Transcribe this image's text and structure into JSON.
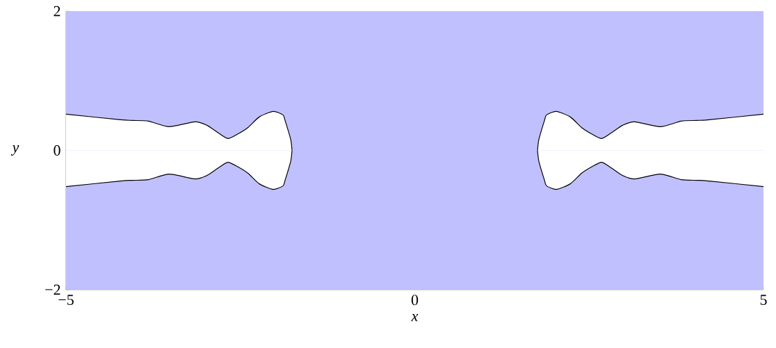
{
  "chart_data": {
    "type": "area",
    "xlabel": "x",
    "ylabel": "y",
    "xlim": [
      -5,
      5
    ],
    "ylim": [
      -2,
      2
    ],
    "xticks": [
      {
        "value": -5,
        "label": "−5"
      },
      0,
      5
    ],
    "yticks": [
      {
        "value": -2,
        "label": "−2"
      },
      0,
      2
    ],
    "grid": false,
    "bands": [
      {
        "axis": "y",
        "from": -2,
        "to": 2,
        "color": "#c0c0ff"
      }
    ],
    "series": [
      {
        "color": "#ffffff",
        "x": [
          -5,
          -4.22,
          -4.05,
          -3.82,
          -3.52,
          -3.15,
          -2.98,
          -2.83,
          -2.68,
          -2.53,
          -2.39,
          -2.23,
          -2.03,
          -1.89,
          -1.86,
          -1.78,
          -1.76
        ],
        "values": [
          0.52,
          0.44,
          0.43,
          0.42,
          0.34,
          0.41,
          0.36,
          0.26,
          0.17,
          0.24,
          0.33,
          0.48,
          0.56,
          0.51,
          0.43,
          0.16,
          0
        ]
      },
      {
        "color": "#ffffff",
        "x": [
          -5,
          -4.22,
          -4.05,
          -3.82,
          -3.52,
          -3.15,
          -2.98,
          -2.83,
          -2.68,
          -2.53,
          -2.39,
          -2.23,
          -2.03,
          -1.89,
          -1.86,
          -1.78,
          -1.76
        ],
        "values": [
          -0.52,
          -0.44,
          -0.43,
          -0.42,
          -0.34,
          -0.41,
          -0.36,
          -0.26,
          -0.17,
          -0.24,
          -0.33,
          -0.48,
          -0.56,
          -0.51,
          -0.43,
          -0.16,
          0
        ]
      },
      {
        "color": "#ffffff",
        "x": [
          1.76,
          1.78,
          1.86,
          1.89,
          2.03,
          2.23,
          2.39,
          2.53,
          2.68,
          2.83,
          2.98,
          3.15,
          3.52,
          3.82,
          4.05,
          4.22,
          5
        ],
        "values": [
          0,
          0.16,
          0.43,
          0.51,
          0.56,
          0.48,
          0.33,
          0.24,
          0.17,
          0.26,
          0.36,
          0.41,
          0.34,
          0.42,
          0.43,
          0.44,
          0.52
        ]
      },
      {
        "color": "#ffffff",
        "x": [
          1.76,
          1.78,
          1.86,
          1.89,
          2.03,
          2.23,
          2.39,
          2.53,
          2.68,
          2.83,
          2.98,
          3.15,
          3.52,
          3.82,
          4.05,
          4.22,
          5
        ],
        "values": [
          0,
          -0.16,
          -0.43,
          -0.51,
          -0.56,
          -0.48,
          -0.33,
          -0.24,
          -0.17,
          -0.26,
          -0.36,
          -0.41,
          -0.34,
          -0.42,
          -0.43,
          -0.44,
          -0.52
        ]
      }
    ]
  }
}
